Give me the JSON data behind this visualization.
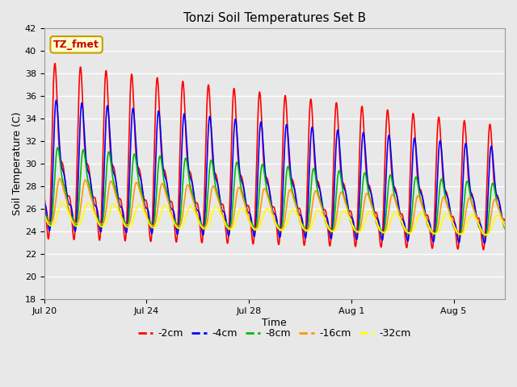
{
  "title": "Tonzi Soil Temperatures Set B",
  "xlabel": "Time",
  "ylabel": "Soil Temperature (C)",
  "annotation_text": "TZ_fmet",
  "annotation_color": "#cc0000",
  "annotation_bg": "#ffffcc",
  "annotation_border": "#cc9900",
  "ylim": [
    18,
    42
  ],
  "background_color": "#e8e8e8",
  "grid_color": "#ffffff",
  "series_keys": [
    "-2cm",
    "-4cm",
    "-8cm",
    "-16cm",
    "-32cm"
  ],
  "series_colors": [
    "#ff0000",
    "#0000ff",
    "#00bb00",
    "#ff9900",
    "#ffff00"
  ],
  "series_lw": [
    1.2,
    1.2,
    1.2,
    1.2,
    1.2
  ],
  "xtick_positions": [
    0,
    4,
    8,
    12,
    16
  ],
  "xtick_labels": [
    "Jul 20",
    "Jul 24",
    "Jul 28",
    "Aug 1",
    "Aug 5"
  ],
  "yticks": [
    18,
    20,
    22,
    24,
    26,
    28,
    30,
    32,
    34,
    36,
    38,
    40,
    42
  ],
  "n_days": 18,
  "n_points": 1800,
  "figsize": [
    6.4,
    4.8
  ],
  "dpi": 100
}
